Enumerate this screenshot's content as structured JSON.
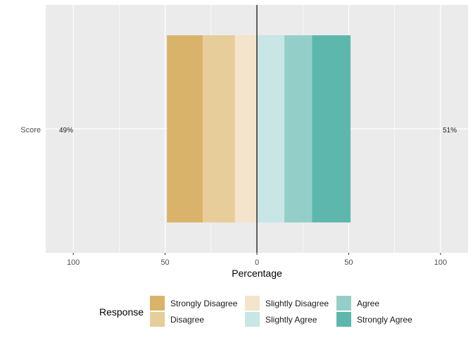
{
  "chart_data": {
    "type": "bar",
    "orientation": "diverging-horizontal",
    "categories": [
      "Score"
    ],
    "series": [
      {
        "name": "Strongly Disagree",
        "values": [
          -19.5
        ],
        "color": "#DAB36A"
      },
      {
        "name": "Disagree",
        "values": [
          -17.5
        ],
        "color": "#E7CD9A"
      },
      {
        "name": "Slightly Disagree",
        "values": [
          -12
        ],
        "color": "#F3E4CB"
      },
      {
        "name": "Slightly Agree",
        "values": [
          15
        ],
        "color": "#C7E6E5"
      },
      {
        "name": "Agree",
        "values": [
          15
        ],
        "color": "#93CFC8"
      },
      {
        "name": "Strongly Agree",
        "values": [
          21
        ],
        "color": "#5DB7AD"
      }
    ],
    "left_total_label": "49%",
    "right_total_label": "51%",
    "xlabel": "Percentage",
    "ylabel": "",
    "xlim": [
      -115,
      115
    ],
    "xticks": [
      -100,
      -50,
      0,
      50,
      100
    ],
    "xtick_labels": [
      "100",
      "50",
      "0",
      "50",
      "100"
    ],
    "legend_title": "Response",
    "legend_position": "bottom",
    "grid": true,
    "colors": {
      "panel": "#EBEBEB",
      "grid": "#FFFFFF",
      "zero_line": "#000000"
    }
  }
}
